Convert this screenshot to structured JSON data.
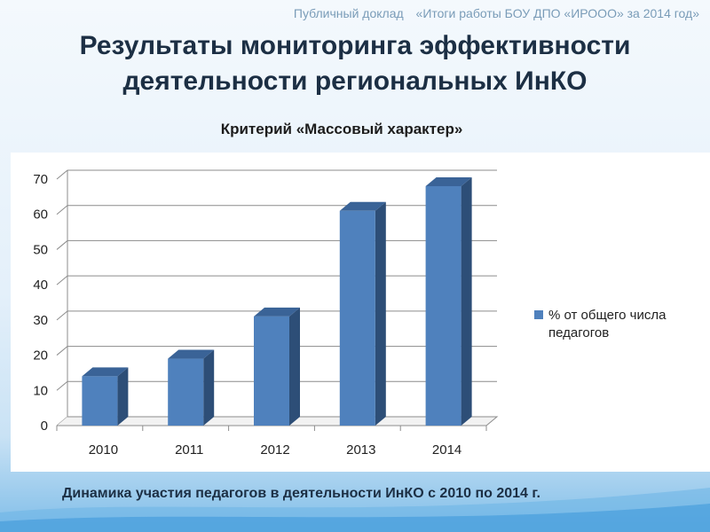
{
  "header": {
    "left": "Публичный доклад",
    "right": "«Итоги работы БОУ ДПО «ИРООО» за 2014 год»"
  },
  "title": {
    "line1": "Результаты мониторинга эффективности",
    "line2": "деятельности региональных ИнКО"
  },
  "criterion": "Критерий «Массовый характер»",
  "caption": "Динамика участия педагогов в деятельности ИнКО с 2010 по 2014 г.",
  "colors": {
    "bar_front": "#4f81bd",
    "bar_side": "#2d4e77",
    "bar_top": "#3a6397",
    "title": "#1c2f44",
    "grid": "#8c8c8c"
  },
  "chart_data": {
    "type": "bar",
    "categories": [
      "2010",
      "2011",
      "2012",
      "2013",
      "2014"
    ],
    "series": [
      {
        "name": "% от общего числа педагогов",
        "values": [
          14,
          19,
          31,
          61,
          68
        ]
      }
    ],
    "ylim": [
      0,
      70
    ],
    "yticks": [
      0,
      10,
      20,
      30,
      40,
      50,
      60,
      70
    ],
    "grid": true,
    "legend": "right",
    "three_d": true
  }
}
